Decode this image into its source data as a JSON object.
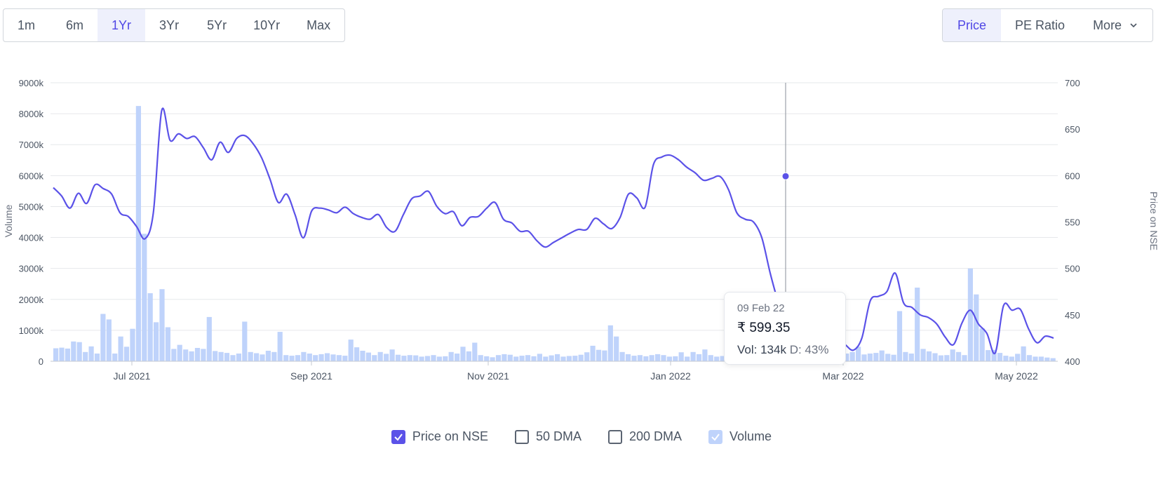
{
  "range_buttons": [
    "1m",
    "6m",
    "1Yr",
    "3Yr",
    "5Yr",
    "10Yr",
    "Max"
  ],
  "active_range": "1Yr",
  "metric_buttons": {
    "price": "Price",
    "pe": "PE Ratio",
    "more": "More"
  },
  "active_metric": "Price",
  "colors": {
    "price_line": "#5b52e8",
    "volume_bar": "#bfd3fb",
    "grid": "#e6e8eb",
    "accent": "#4f46e5"
  },
  "chart_data": {
    "type": "line",
    "x_ticks": [
      "Jul 2021",
      "Sep 2021",
      "Nov 2021",
      "Jan 2022",
      "Mar 2022",
      "May 2022"
    ],
    "left_axis": {
      "label": "Volume",
      "ticks": [
        "0",
        "1000k",
        "2000k",
        "3000k",
        "4000k",
        "5000k",
        "6000k",
        "7000k",
        "8000k",
        "9000k"
      ],
      "range": [
        0,
        9000
      ]
    },
    "right_axis": {
      "label": "Price on NSE",
      "ticks": [
        "400",
        "450",
        "500",
        "550",
        "600",
        "650",
        "700"
      ],
      "range": [
        400,
        700
      ]
    },
    "price_series": {
      "name": "Price on NSE",
      "values": [
        587,
        578,
        565,
        581,
        570,
        590,
        586,
        580,
        560,
        556,
        545,
        532,
        560,
        670,
        638,
        645,
        640,
        642,
        630,
        617,
        636,
        625,
        640,
        643,
        634,
        619,
        596,
        571,
        580,
        558,
        533,
        562,
        565,
        563,
        560,
        566,
        559,
        555,
        553,
        558,
        544,
        540,
        558,
        575,
        578,
        583,
        567,
        559,
        561,
        546,
        555,
        556,
        565,
        571,
        553,
        549,
        540,
        540,
        530,
        523,
        528,
        533,
        538,
        542,
        542,
        554,
        548,
        543,
        555,
        580,
        576,
        566,
        612,
        620,
        622,
        617,
        609,
        603,
        595,
        597,
        599,
        585,
        560,
        553,
        550,
        533,
        495,
        462,
        430,
        425,
        428,
        432,
        436,
        440,
        426,
        418,
        412,
        425,
        465,
        470,
        475,
        495,
        463,
        458,
        450,
        447,
        440,
        426,
        418,
        441,
        455,
        440,
        430,
        409,
        460,
        455,
        456,
        435,
        420,
        427,
        425
      ],
      "x_positions": "auto"
    },
    "volume_series": {
      "name": "Volume",
      "values": [
        420,
        440,
        410,
        640,
        620,
        300,
        480,
        250,
        1530,
        1350,
        250,
        800,
        470,
        1050,
        8250,
        4120,
        2200,
        1260,
        2330,
        1100,
        400,
        530,
        380,
        320,
        430,
        400,
        1430,
        330,
        300,
        270,
        200,
        250,
        1280,
        300,
        260,
        220,
        340,
        300,
        950,
        200,
        180,
        200,
        300,
        250,
        200,
        230,
        260,
        220,
        200,
        180,
        700,
        450,
        340,
        280,
        200,
        300,
        240,
        380,
        210,
        180,
        200,
        190,
        150,
        170,
        200,
        150,
        160,
        300,
        250,
        470,
        320,
        600,
        200,
        160,
        130,
        200,
        230,
        210,
        150,
        180,
        200,
        160,
        240,
        150,
        190,
        230,
        150,
        170,
        180,
        210,
        290,
        500,
        370,
        350,
        1160,
        800,
        300,
        230,
        180,
        200,
        160,
        200,
        230,
        200,
        150,
        160,
        290,
        150,
        300,
        230,
        380,
        200,
        150,
        170,
        320,
        130,
        400,
        460,
        140,
        170,
        160,
        130,
        340,
        120,
        140,
        230,
        260,
        1000,
        380,
        470,
        550,
        820,
        280,
        310,
        250,
        300,
        470,
        220,
        250,
        270,
        350,
        240,
        210,
        1620,
        300,
        250,
        2380,
        400,
        320,
        260,
        190,
        200,
        380,
        300,
        200,
        3000,
        2160,
        1060,
        360,
        370,
        270,
        180,
        150,
        240,
        480,
        200,
        150,
        150,
        120,
        100
      ]
    },
    "highlight": {
      "date": "09 Feb 22",
      "price": 599.35,
      "volume": "134k",
      "delivery": "43%"
    },
    "grid": true
  },
  "tooltip": {
    "date": "09 Feb 22",
    "price": "₹ 599.35",
    "vol_label": "Vol: 134k",
    "delivery_label": "D: 43%"
  },
  "legend": {
    "price": "Price on NSE",
    "dma50": "50 DMA",
    "dma200": "200 DMA",
    "volume": "Volume"
  }
}
